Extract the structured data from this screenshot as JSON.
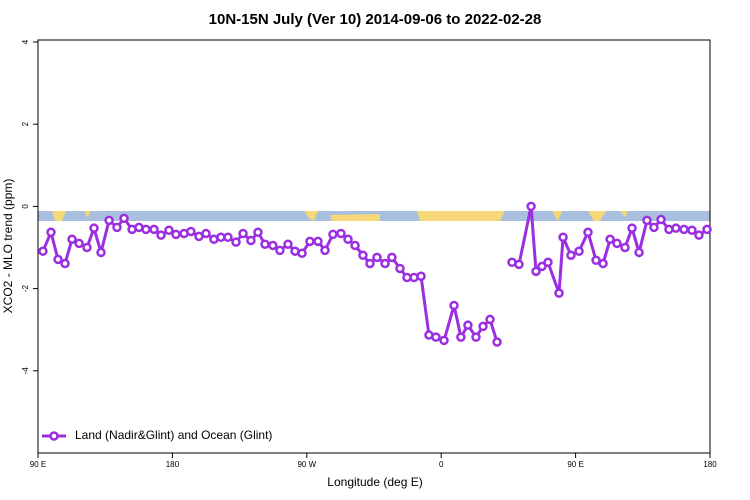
{
  "chart_data": {
    "type": "line",
    "title": "10N-15N July (Ver 10)   2014-09-06 to 2022-02-28",
    "x_label": "Longitude (deg E)",
    "y_label": "XCO2 - MLO trend (ppm)",
    "x": [
      93.3,
      98.7,
      103.4,
      108.1,
      112.8,
      117.5,
      122.8,
      127.5,
      132.2,
      137.6,
      142.9,
      147.6,
      153.0,
      157.6,
      162.3,
      167.7,
      172.4,
      177.7,
      182.4,
      187.8,
      192.4,
      197.8,
      202.5,
      207.8,
      212.5,
      217.2,
      222.6,
      227.3,
      232.6,
      237.3,
      242.0,
      247.3,
      252.0,
      257.4,
      262.1,
      266.8,
      272.1,
      277.5,
      282.2,
      287.5,
      292.9,
      297.6,
      302.3,
      307.6,
      312.3,
      317.0,
      322.4,
      327.0,
      332.4,
      337.1,
      341.8,
      346.5,
      351.8,
      356.5,
      361.9,
      368.6,
      373.2,
      377.9,
      383.3,
      388.0,
      392.7,
      397.4,
      402.4,
      407.4,
      412.1,
      420.2,
      423.5,
      427.5,
      431.5,
      438.9,
      441.6,
      446.9,
      452.3,
      458.3,
      463.7,
      468.4,
      473.1,
      477.7,
      483.1,
      487.8,
      492.5,
      497.8,
      502.5,
      507.2,
      512.5,
      517.2,
      522.6,
      527.9,
      532.6,
      538.0
    ],
    "series": [
      {
        "name": "Land (Nadir&Glint) and Ocean (Glint)",
        "color": "#9b2fe0",
        "values": [
          -1.09,
          -0.63,
          -1.29,
          -1.39,
          -0.8,
          -0.9,
          -1.0,
          -0.53,
          -1.12,
          -0.34,
          -0.51,
          -0.29,
          -0.56,
          -0.51,
          -0.56,
          -0.56,
          -0.7,
          -0.58,
          -0.68,
          -0.66,
          -0.61,
          -0.73,
          -0.66,
          -0.8,
          -0.75,
          -0.75,
          -0.87,
          -0.66,
          -0.83,
          -0.63,
          -0.92,
          -0.95,
          -1.07,
          -0.92,
          -1.09,
          -1.14,
          -0.85,
          -0.85,
          -1.07,
          -0.68,
          -0.66,
          -0.8,
          -0.95,
          -1.19,
          -1.39,
          -1.24,
          -1.39,
          -1.24,
          -1.51,
          -1.73,
          -1.73,
          -1.7,
          -3.13,
          -3.18,
          -3.26,
          -2.41,
          -3.18,
          -2.89,
          -3.18,
          -2.92,
          -2.75,
          -3.3,
          null,
          -1.36,
          -1.41,
          0.0,
          -1.58,
          -1.46,
          -1.36,
          -2.11,
          -0.75,
          -1.19,
          -1.09,
          -0.63,
          -1.31,
          -1.39,
          -0.8,
          -0.9,
          -1.0,
          -0.53,
          -1.12,
          -0.34,
          -0.51,
          -0.32,
          -0.56,
          -0.53,
          -0.56,
          -0.58,
          -0.7,
          -0.56
        ]
      }
    ],
    "xlim": [
      90,
      540
    ],
    "xticks": [
      {
        "value": 90,
        "label": "90 E"
      },
      180,
      {
        "value": 270,
        "label": "90 W"
      },
      {
        "value": 360,
        "label": "0"
      },
      {
        "value": 450,
        "label": "90 E"
      },
      {
        "value": 540,
        "label": "180"
      }
    ],
    "ylim": [
      -6,
      4
    ],
    "yticks": [
      -4,
      -2,
      0,
      2,
      4
    ],
    "legend": "bottom-left"
  }
}
